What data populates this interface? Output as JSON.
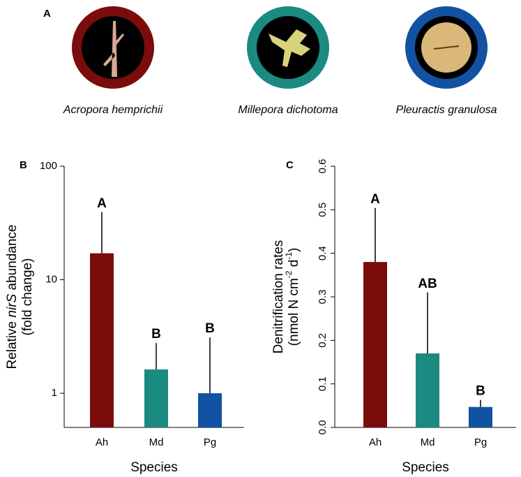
{
  "panel_a": {
    "label": "A",
    "species": [
      "Acropora hemprichii",
      "Millepora dichotoma",
      "Pleuractis granulosa"
    ],
    "colors": [
      "#7b0c0c",
      "#1b8a80",
      "#1252a3"
    ]
  },
  "chart_data": [
    {
      "type": "bar",
      "panel_label": "B",
      "log_scale": true,
      "ylabel": [
        [
          "Relative ",
          "nirS",
          " abundance"
        ],
        [
          "(fold change)"
        ]
      ],
      "xlabel": "Species",
      "categories": [
        "Ah",
        "Md",
        "Pg"
      ],
      "values": [
        17.1,
        1.62,
        1.0
      ],
      "errors": [
        22.3,
        1.15,
        2.1
      ],
      "letters": [
        "A",
        "B",
        "B"
      ],
      "colors": [
        "#7b0c0c",
        "#1b8a80",
        "#1252a3"
      ],
      "ylim": [
        0.5,
        100
      ],
      "yticks": [
        1,
        10,
        100
      ]
    },
    {
      "type": "bar",
      "panel_label": "C",
      "log_scale": false,
      "ylabel": [
        [
          "Denitrification rates"
        ],
        [
          "(nmol N cm",
          "-2",
          " d",
          "-1",
          ")"
        ]
      ],
      "xlabel": "Species",
      "categories": [
        "Ah",
        "Md",
        "Pg"
      ],
      "values": [
        0.38,
        0.17,
        0.047
      ],
      "errors": [
        0.124,
        0.14,
        0.016
      ],
      "letters": [
        "A",
        "AB",
        "B"
      ],
      "colors": [
        "#7b0c0c",
        "#1b8a80",
        "#1252a3"
      ],
      "ylim": [
        0,
        0.6
      ],
      "yticks": [
        {
          "value": 0,
          "label": "0.0"
        },
        0.1,
        0.2,
        0.3,
        0.4,
        0.5,
        0.6
      ]
    }
  ]
}
